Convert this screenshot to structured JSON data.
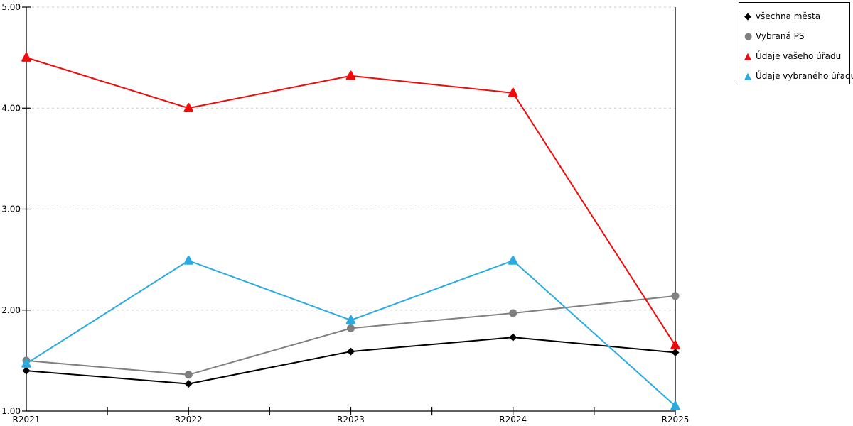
{
  "chart_data": {
    "type": "line",
    "categories": [
      "R2021",
      "R2022",
      "R2023",
      "R2024",
      "R2025"
    ],
    "series": [
      {
        "name": "všechna města",
        "color": "#000000",
        "marker": "diamond",
        "values": [
          1.4,
          1.27,
          1.59,
          1.73,
          1.58
        ]
      },
      {
        "name": "Vybraná PS",
        "color": "#808080",
        "marker": "circle",
        "values": [
          1.5,
          1.36,
          1.82,
          1.97,
          2.14
        ]
      },
      {
        "name": "Údaje vašeho úřadu",
        "color": "#f00a0a",
        "marker": "triangle",
        "values": [
          4.5,
          4.0,
          4.32,
          4.15,
          1.65
        ]
      },
      {
        "name": "Údaje vybraného úřadu",
        "color": "#29abe2",
        "marker": "triangle",
        "values": [
          1.47,
          2.49,
          1.9,
          2.49,
          1.05
        ]
      }
    ],
    "ylim": [
      1,
      5
    ],
    "ytick_labels": [
      "1.00",
      "2.00",
      "3.00",
      "4.00",
      "5.00"
    ],
    "grid": "horizontal-dotted",
    "gridline_color": "#c8c8c8",
    "axis_color": "#000000",
    "text_color": "#000000",
    "legend_position": "top-right"
  }
}
